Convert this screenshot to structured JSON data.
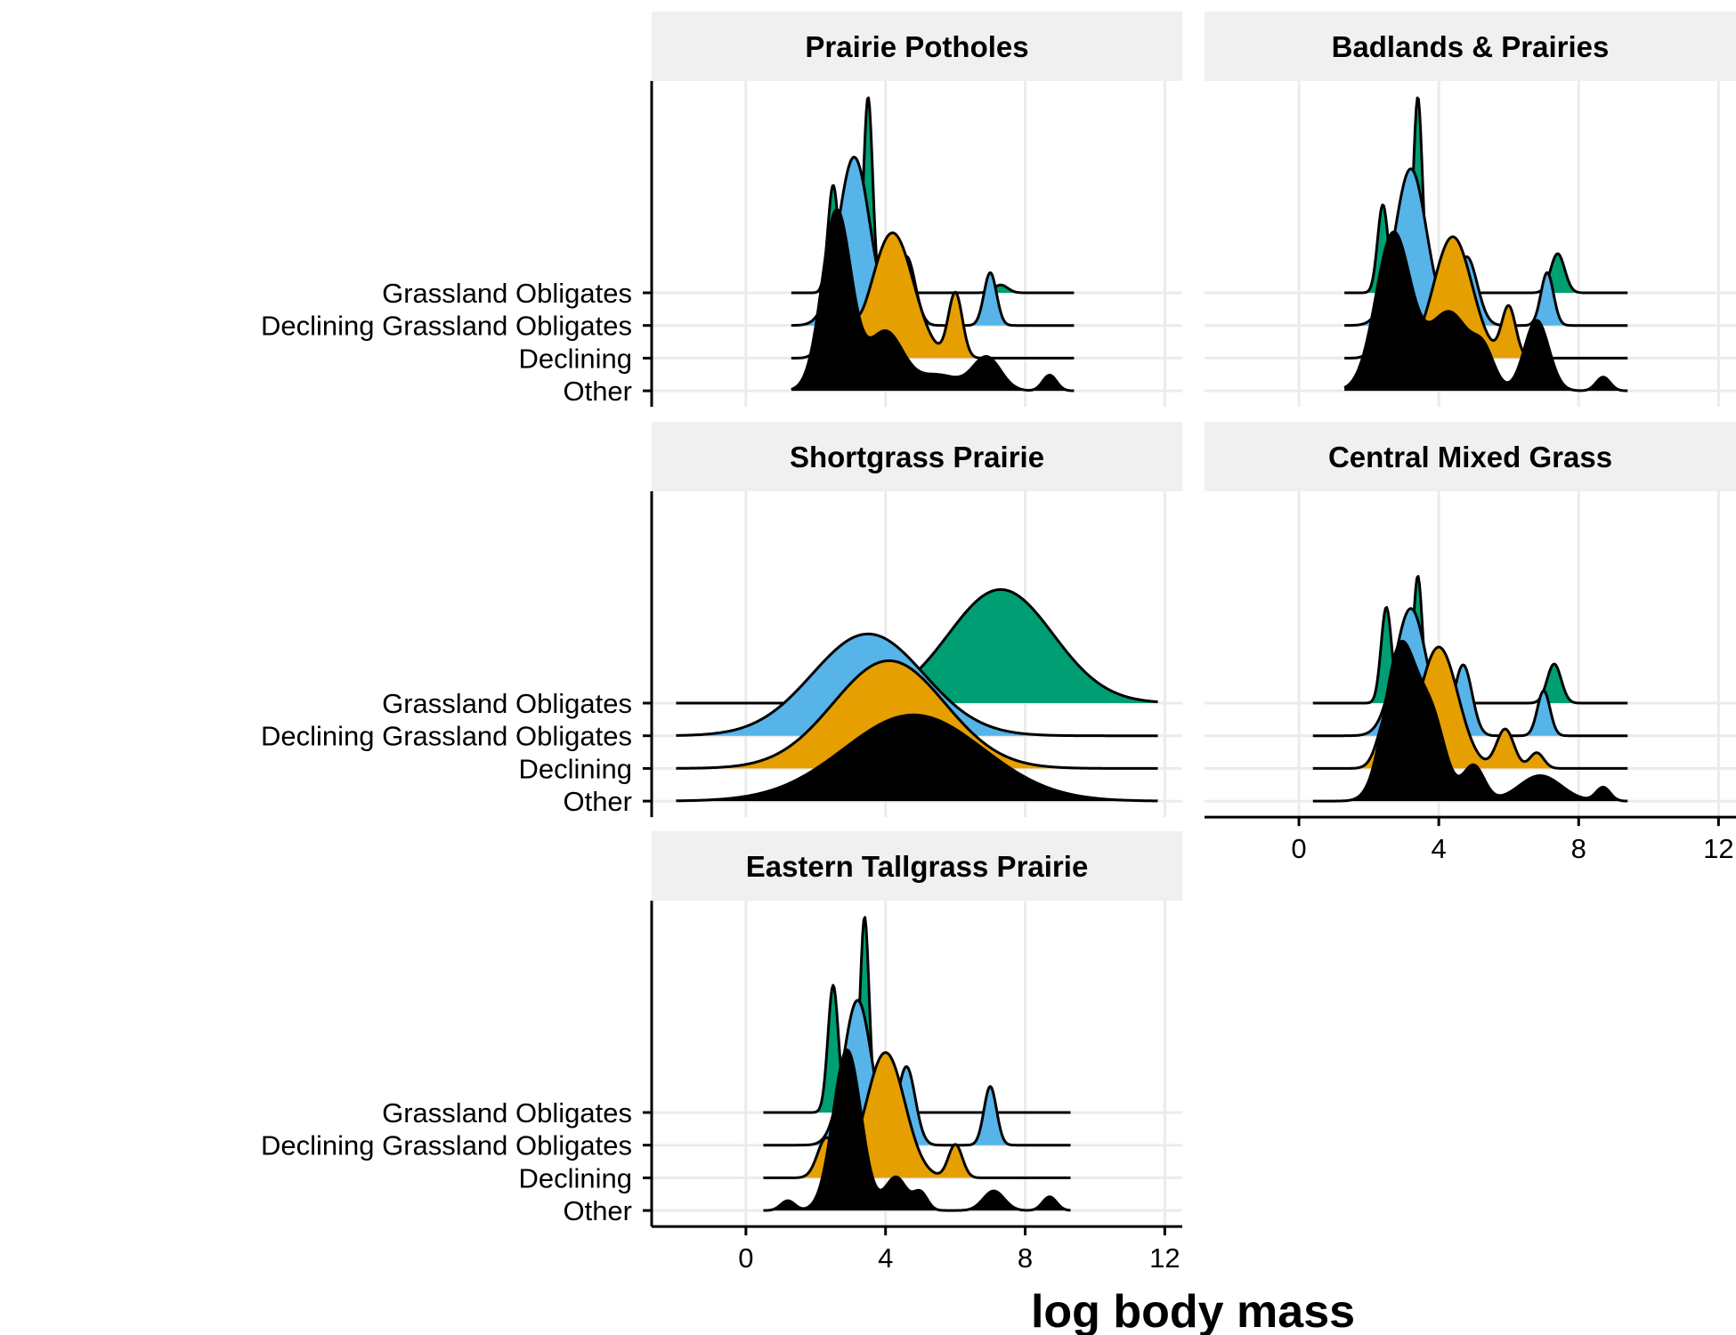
{
  "chart_data": {
    "type": "ridgeline",
    "title": "",
    "xlabel": "log body mass",
    "ylabel": "",
    "xlim": [
      -2.7,
      12.5
    ],
    "x_ticks": [
      0,
      4,
      8,
      12
    ],
    "grid": true,
    "categories": [
      "Grassland Obligates",
      "Declining Grassland Obligates",
      "Declining",
      "Other"
    ],
    "colors": {
      "Grassland Obligates": "#009E73",
      "Declining Grassland Obligates": "#56B4E9",
      "Declining": "#E69F00",
      "Other": "#000000"
    },
    "panels": [
      {
        "title": "Prairie Potholes",
        "series": [
          {
            "name": "Grassland Obligates",
            "range": [
              1.3,
              9.4
            ],
            "peaks": [
              [
                3.5,
                0.13,
                1.0
              ],
              [
                2.5,
                0.15,
                0.55
              ],
              [
                7.3,
                0.2,
                0.04
              ]
            ]
          },
          {
            "name": "Declining Grassland Obligates",
            "range": [
              1.3,
              9.4
            ],
            "peaks": [
              [
                3.1,
                0.45,
                0.86
              ],
              [
                4.6,
                0.25,
                0.35
              ],
              [
                7.0,
                0.18,
                0.27
              ]
            ]
          },
          {
            "name": "Declining",
            "range": [
              1.3,
              9.4
            ],
            "peaks": [
              [
                2.6,
                0.3,
                0.4
              ],
              [
                4.2,
                0.6,
                0.64
              ],
              [
                6.0,
                0.2,
                0.33
              ]
            ]
          },
          {
            "name": "Other",
            "range": [
              1.3,
              9.4
            ],
            "peaks": [
              [
                2.6,
                0.42,
                0.92
              ],
              [
                4.0,
                0.5,
                0.3
              ],
              [
                5.5,
                0.6,
                0.08
              ],
              [
                6.9,
                0.4,
                0.17
              ],
              [
                8.7,
                0.2,
                0.08
              ]
            ]
          }
        ]
      },
      {
        "title": "Badlands & Prairies",
        "series": [
          {
            "name": "Grassland Obligates",
            "range": [
              1.3,
              9.4
            ],
            "peaks": [
              [
                3.4,
                0.13,
                1.0
              ],
              [
                2.4,
                0.15,
                0.45
              ],
              [
                7.4,
                0.2,
                0.2
              ]
            ]
          },
          {
            "name": "Declining Grassland Obligates",
            "range": [
              1.3,
              9.4
            ],
            "peaks": [
              [
                3.2,
                0.45,
                0.8
              ],
              [
                4.8,
                0.3,
                0.35
              ],
              [
                7.1,
                0.18,
                0.27
              ]
            ]
          },
          {
            "name": "Declining",
            "range": [
              1.3,
              9.4
            ],
            "peaks": [
              [
                2.6,
                0.3,
                0.3
              ],
              [
                4.4,
                0.55,
                0.62
              ],
              [
                6.0,
                0.2,
                0.26
              ]
            ]
          },
          {
            "name": "Other",
            "range": [
              1.3,
              9.4
            ],
            "peaks": [
              [
                2.7,
                0.5,
                0.8
              ],
              [
                4.3,
                0.6,
                0.4
              ],
              [
                5.3,
                0.3,
                0.15
              ],
              [
                6.8,
                0.35,
                0.36
              ],
              [
                8.7,
                0.2,
                0.07
              ]
            ]
          }
        ]
      },
      {
        "title": "Shortgrass Prairie",
        "series": [
          {
            "name": "Grassland Obligates",
            "range": [
              -2.0,
              11.8
            ],
            "peaks": [
              [
                7.3,
                1.5,
                0.58
              ]
            ]
          },
          {
            "name": "Declining Grassland Obligates",
            "range": [
              -2.0,
              11.8
            ],
            "peaks": [
              [
                3.5,
                1.6,
                0.52
              ]
            ]
          },
          {
            "name": "Declining",
            "range": [
              -2.0,
              11.8
            ],
            "peaks": [
              [
                4.1,
                1.6,
                0.55
              ]
            ]
          },
          {
            "name": "Other",
            "range": [
              -2.0,
              11.8
            ],
            "peaks": [
              [
                4.8,
                2.0,
                0.44
              ]
            ]
          }
        ]
      },
      {
        "title": "Central Mixed Grass",
        "series": [
          {
            "name": "Grassland Obligates",
            "range": [
              0.4,
              9.4
            ],
            "peaks": [
              [
                3.4,
                0.13,
                0.65
              ],
              [
                2.5,
                0.15,
                0.49
              ],
              [
                7.3,
                0.2,
                0.2
              ]
            ]
          },
          {
            "name": "Declining Grassland Obligates",
            "range": [
              0.4,
              9.4
            ],
            "peaks": [
              [
                3.2,
                0.45,
                0.65
              ],
              [
                4.7,
                0.25,
                0.36
              ],
              [
                7.0,
                0.18,
                0.23
              ]
            ]
          },
          {
            "name": "Declining",
            "range": [
              0.4,
              9.4
            ],
            "peaks": [
              [
                2.6,
                0.3,
                0.3
              ],
              [
                4.0,
                0.55,
                0.62
              ],
              [
                5.9,
                0.25,
                0.2
              ],
              [
                6.8,
                0.2,
                0.08
              ]
            ]
          },
          {
            "name": "Other",
            "range": [
              0.4,
              9.4
            ],
            "peaks": [
              [
                2.9,
                0.45,
                0.78
              ],
              [
                3.8,
                0.4,
                0.4
              ],
              [
                5.0,
                0.3,
                0.18
              ],
              [
                6.9,
                0.6,
                0.13
              ],
              [
                8.7,
                0.2,
                0.07
              ]
            ]
          }
        ]
      },
      {
        "title": "Eastern Tallgrass Prairie",
        "series": [
          {
            "name": "Grassland Obligates",
            "range": [
              0.5,
              9.3
            ],
            "peaks": [
              [
                3.4,
                0.13,
                1.0
              ],
              [
                2.5,
                0.15,
                0.65
              ]
            ]
          },
          {
            "name": "Declining Grassland Obligates",
            "range": [
              0.5,
              9.3
            ],
            "peaks": [
              [
                3.2,
                0.4,
                0.74
              ],
              [
                4.6,
                0.25,
                0.4
              ],
              [
                7.0,
                0.18,
                0.3
              ]
            ]
          },
          {
            "name": "Declining",
            "range": [
              0.5,
              9.3
            ],
            "peaks": [
              [
                2.3,
                0.25,
                0.2
              ],
              [
                4.0,
                0.55,
                0.64
              ],
              [
                6.0,
                0.2,
                0.17
              ]
            ]
          },
          {
            "name": "Other",
            "range": [
              0.5,
              9.3
            ],
            "peaks": [
              [
                2.9,
                0.4,
                0.82
              ],
              [
                4.3,
                0.3,
                0.17
              ],
              [
                5.0,
                0.2,
                0.09
              ],
              [
                7.1,
                0.3,
                0.1
              ],
              [
                8.7,
                0.2,
                0.07
              ],
              [
                1.2,
                0.2,
                0.05
              ]
            ]
          }
        ]
      }
    ]
  }
}
